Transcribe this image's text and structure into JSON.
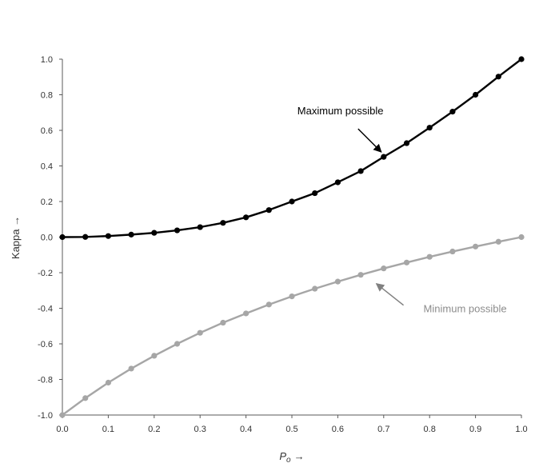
{
  "chart_data": {
    "type": "line",
    "title": "",
    "xlabel": "P",
    "xlabel_sub": "o",
    "xlabel_arrow": "→",
    "ylabel": "Kappa →",
    "xlim": [
      0.0,
      1.0
    ],
    "ylim": [
      -1.0,
      1.0
    ],
    "x_ticks": [
      "0.0",
      "0.1",
      "0.2",
      "0.3",
      "0.4",
      "0.5",
      "0.6",
      "0.7",
      "0.8",
      "0.9",
      "1.0"
    ],
    "y_ticks": [
      "1.0",
      "0.8",
      "0.6",
      "0.4",
      "0.2",
      "0.0",
      "-0.2",
      "-0.4",
      "-0.6",
      "-0.8",
      "-1.0"
    ],
    "grid": false,
    "x": [
      0.0,
      0.05,
      0.1,
      0.15,
      0.2,
      0.25,
      0.3,
      0.35,
      0.4,
      0.45,
      0.5,
      0.55,
      0.6,
      0.65,
      0.7,
      0.75,
      0.8,
      0.85,
      0.9,
      0.95,
      1.0
    ],
    "series": [
      {
        "name": "Maximum possible",
        "color": "#000000",
        "values": [
          0.0,
          0.001,
          0.006,
          0.014,
          0.024,
          0.038,
          0.056,
          0.08,
          0.111,
          0.152,
          0.2,
          0.247,
          0.308,
          0.371,
          0.451,
          0.528,
          0.615,
          0.705,
          0.8,
          0.902,
          1.0
        ]
      },
      {
        "name": "Minimum possible",
        "color": "#a6a6a6",
        "values": [
          -1.0,
          -0.905,
          -0.818,
          -0.739,
          -0.667,
          -0.6,
          -0.538,
          -0.481,
          -0.429,
          -0.379,
          -0.333,
          -0.29,
          -0.25,
          -0.212,
          -0.176,
          -0.143,
          -0.111,
          -0.081,
          -0.053,
          -0.026,
          0.0
        ]
      }
    ],
    "annotations": [
      {
        "text": "Maximum possible",
        "series": 0,
        "points_to_x": 0.7,
        "color": "#000000"
      },
      {
        "text": "Minimum possible",
        "series": 1,
        "points_to_x": 0.67,
        "color": "#8c8c8c"
      }
    ]
  }
}
